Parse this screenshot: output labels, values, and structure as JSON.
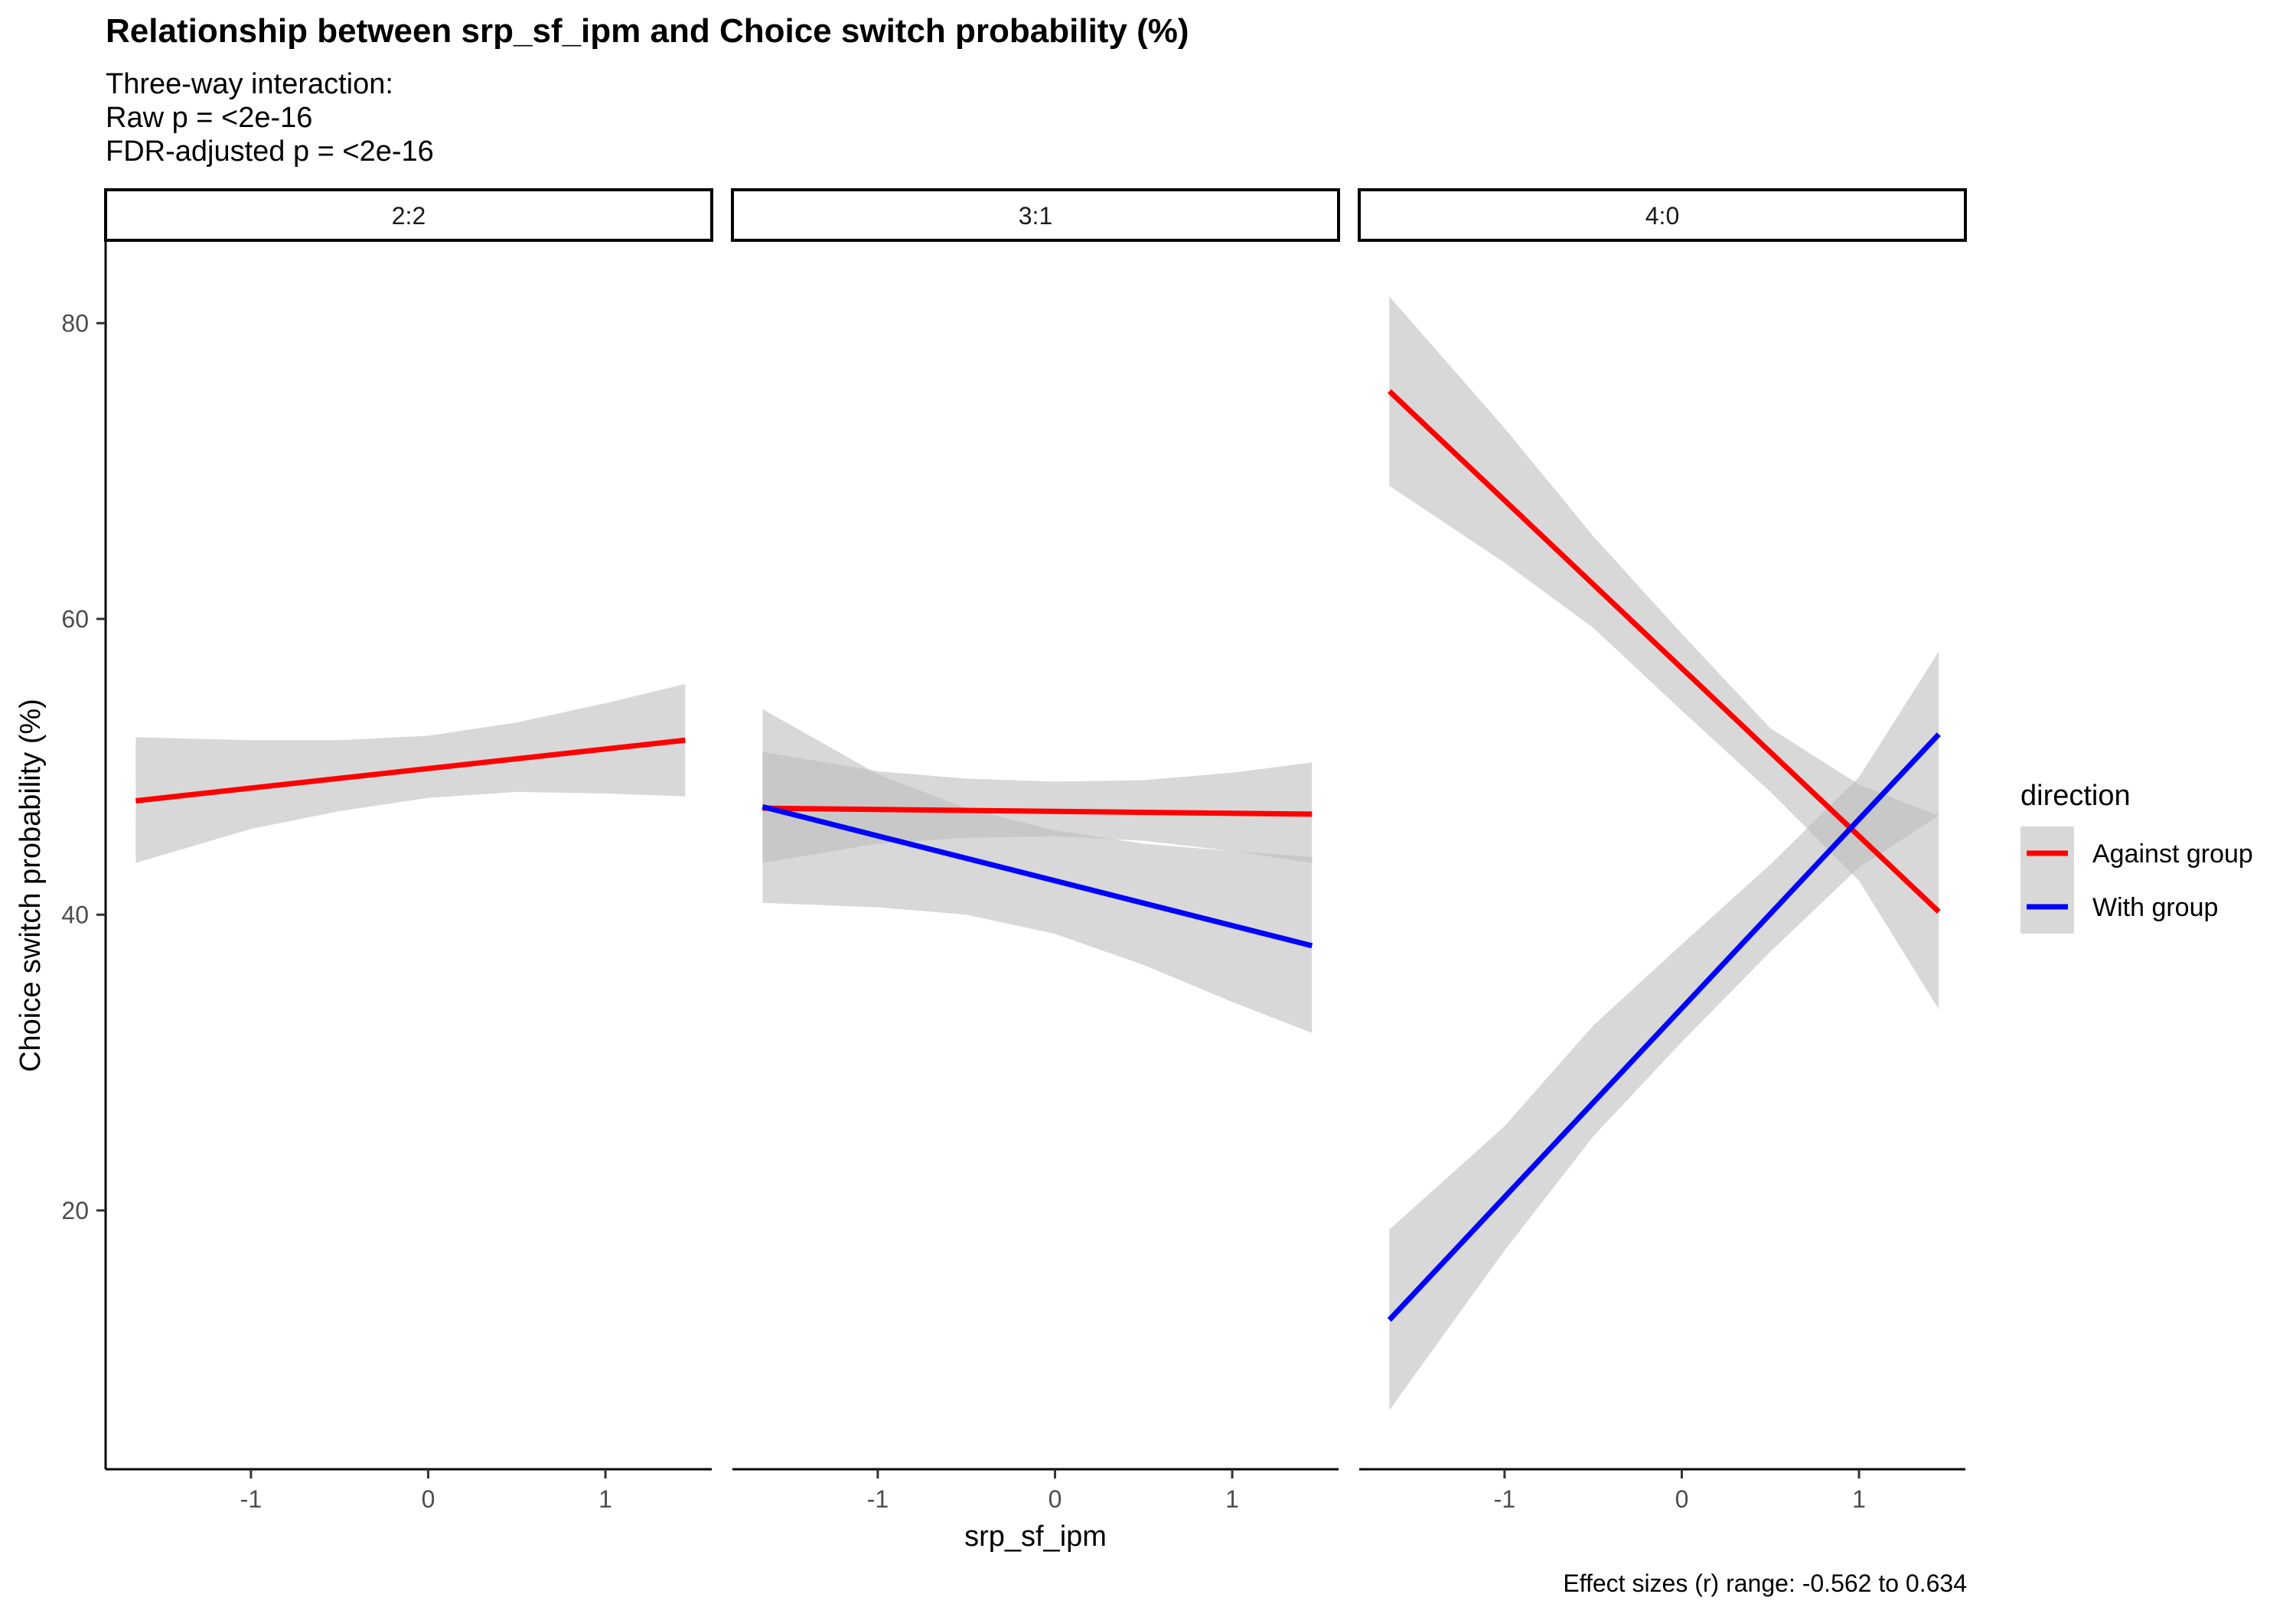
{
  "chart_data": {
    "type": "line",
    "title": "Relationship between srp_sf_ipm and Choice switch probability (%)",
    "subtitle_lines": [
      "Three-way interaction:",
      "Raw p = <2e-16",
      "FDR-adjusted p = <2e-16"
    ],
    "xlabel": "srp_sf_ipm",
    "ylabel": "Choice switch probability (%)",
    "caption": "Effect sizes (r) range: -0.562 to 0.634",
    "xlim": [
      -1.82,
      1.6
    ],
    "ylim": [
      2.5,
      85.5
    ],
    "x_ticks": [
      -1,
      0,
      1
    ],
    "x_tick_labels": [
      "-1",
      "0",
      "1"
    ],
    "y_ticks": [
      20,
      40,
      60,
      80
    ],
    "y_tick_labels": [
      "20",
      "40",
      "60",
      "80"
    ],
    "grid": false,
    "legend": {
      "title": "direction",
      "position": "right",
      "entries": [
        {
          "name": "Against group",
          "color": "#FF0000"
        },
        {
          "name": "With group",
          "color": "#0000FF"
        }
      ]
    },
    "ribbon_color": "#BEBEBE",
    "facets": [
      {
        "label": "2:2",
        "series": [
          {
            "name": "Against group",
            "color": "#FF0000",
            "x": [
              -1.65,
              1.45
            ],
            "y": [
              47.7,
              51.8
            ],
            "band_x": [
              -1.65,
              -1.0,
              -0.5,
              0.0,
              0.5,
              1.0,
              1.45
            ],
            "band_lower": [
              43.5,
              45.8,
              47.0,
              47.9,
              48.3,
              48.2,
              48.0
            ],
            "band_upper": [
              52.0,
              51.8,
              51.8,
              52.1,
              53.0,
              54.3,
              55.6
            ]
          }
        ]
      },
      {
        "label": "3:1",
        "series": [
          {
            "name": "Against group",
            "color": "#FF0000",
            "x": [
              -1.65,
              1.45
            ],
            "y": [
              47.2,
              46.8
            ],
            "band_x": [
              -1.65,
              -1.0,
              -0.5,
              0.0,
              0.5,
              1.0,
              1.45
            ],
            "band_lower": [
              43.5,
              44.8,
              45.2,
              45.3,
              45.0,
              44.3,
              43.5
            ],
            "band_upper": [
              51.0,
              49.7,
              49.2,
              49.0,
              49.1,
              49.6,
              50.3
            ]
          },
          {
            "name": "With group",
            "color": "#0000FF",
            "x": [
              -1.65,
              1.45
            ],
            "y": [
              47.3,
              37.9
            ],
            "band_x": [
              -1.65,
              -1.0,
              -0.5,
              0.0,
              0.5,
              1.0,
              1.45
            ],
            "band_lower": [
              40.8,
              40.5,
              40.0,
              38.7,
              36.6,
              34.1,
              32.0
            ],
            "band_upper": [
              53.9,
              49.5,
              47.2,
              45.7,
              44.8,
              44.3,
              43.9
            ]
          }
        ]
      },
      {
        "label": "4:0",
        "series": [
          {
            "name": "Against group",
            "color": "#FF0000",
            "x": [
              -1.65,
              1.45
            ],
            "y": [
              75.4,
              40.2
            ],
            "band_x": [
              -1.65,
              -1.0,
              -0.5,
              0.0,
              0.5,
              1.0,
              1.45
            ],
            "band_lower": [
              69.0,
              63.8,
              59.4,
              53.8,
              48.3,
              42.3,
              33.6
            ],
            "band_upper": [
              81.8,
              72.9,
              65.6,
              59.0,
              52.6,
              48.8,
              46.7
            ]
          },
          {
            "name": "With group",
            "color": "#0000FF",
            "x": [
              -1.65,
              1.45
            ],
            "y": [
              12.6,
              52.2
            ],
            "band_x": [
              -1.65,
              -1.0,
              -0.5,
              0.0,
              0.5,
              1.0,
              1.45
            ],
            "band_lower": [
              6.5,
              17.3,
              25.0,
              31.4,
              37.5,
              43.2,
              46.7
            ],
            "band_upper": [
              18.7,
              25.7,
              32.5,
              38.0,
              43.4,
              49.3,
              57.8
            ]
          }
        ]
      }
    ]
  }
}
